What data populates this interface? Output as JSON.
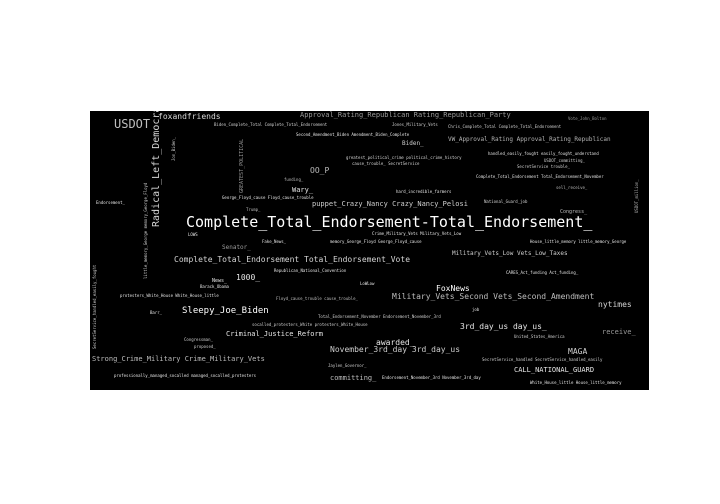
{
  "colors": {
    "background": "#000000",
    "page": "#ffffff",
    "text_bright": "#ffffff",
    "text_mid": "#d0d0d0",
    "text_dim": "#9a9a9a"
  },
  "words": {
    "w01": "USDOT",
    "w02": "foxandfriends",
    "w03": "Approval_Rating_Republican Rating_Republican_Party",
    "w04": "Biden_Complete_Total Complete_Total_Endorsement",
    "w05": "Jones_Military_Vets",
    "w06": "Chris_Complete_Total Complete_Total_Endorsement",
    "w07": "Vote_John_Bolton",
    "w08": "Second_Amendment_Biden Amendment_Biden_Complete",
    "w09": "Biden_",
    "w10": "VW_Approval_Rating Approval_Rating_Republican",
    "w11": "Radical_Left_Democrat",
    "w12": "OO_P",
    "w13": "greatest_political_crime political_crime_history",
    "w14": "cause_trouble_ SecretService",
    "w15": "handled_easily_fought easily_fought_understand",
    "w16": "USDOT_committing_",
    "w17": "SecretService trouble_",
    "w18": "Complete_Total_Endorsement Total_Endorsement_November",
    "w19": "Wary_",
    "w20": "hard_incredible_farmers",
    "w21": "George_Floyd_cause Floyd_cause_trouble",
    "w22": "puppet_Crazy_Nancy Crazy_Nancy_Pelosi",
    "w23": "National_Guard_job",
    "w24": "Congress_",
    "w25": "Complete_Total_Endorsement-Total_Endorsement_",
    "w26": "Crime_Military_Vets Military_Vets_Low",
    "w27": "Fake_News_",
    "w28": "memory_George_Floyd George_Floyd_cause",
    "w29": "House_little_memory little_memory_George",
    "w30": "Senator_",
    "w31": "Complete_Total_Endorsement Total_Endorsement_Vote",
    "w32": "Military_Vets_Low Vets_Low_Taxes",
    "w33": "Republican_National_Convention",
    "w34": "1000_",
    "w35": "CARES_Act_funding Act_funding_",
    "w36": "FoxNews",
    "w37": "protesters_White_House White_House_little",
    "w38": "Floyd_cause_trouble cause_trouble_",
    "w39": "Military_Vets_Second Vets_Second_Amendment",
    "w40": "nytimes",
    "w41": "Sleepy_Joe_Biden",
    "w42": "Total_Endorsement_November Endorsement_November_3rd",
    "w43": "socalled_protesters_White protesters_White_House",
    "w44": "3rd_day_us day_us_",
    "w45": "receive_",
    "w46": "Criminal_Justice_Reform",
    "w47": "United_States_America",
    "w48": "awarded_",
    "w49": "November_3rd_day 3rd_day_us",
    "w50": "MAGA",
    "w51": "Strong_Crime_Military Crime_Military_Vets",
    "w52": "SecretService_handled SecretService_handled_easily",
    "w53": "Jaylen_Governor_",
    "w54": "CALL_NATIONAL_GUARD",
    "w55": "professionally_managed_socalled managed_socalled_protesters",
    "w56": "committing_",
    "w57": "Endorsement_November_3rd November_3rd_day",
    "w58": "White_House_little House_little_memory",
    "w59": "Congressman_",
    "w60": "proposed_",
    "w61": "Endorsement_",
    "w62": "GREATEST_POLITICAL",
    "w63": "Jon_Biden_",
    "w64": "SecretService_handled_easily_fought",
    "w65": "little_memory_George memory_George_Floyd",
    "w66": "USDOT_million_",
    "w67": "Trump_",
    "w68": "LOWS",
    "w69": "funding_",
    "w70": "job",
    "w71": "Barr_",
    "w72": "News_",
    "w73": "Barack_Obama",
    "w74": "LoWLow",
    "w75": "sell_receive_"
  }
}
